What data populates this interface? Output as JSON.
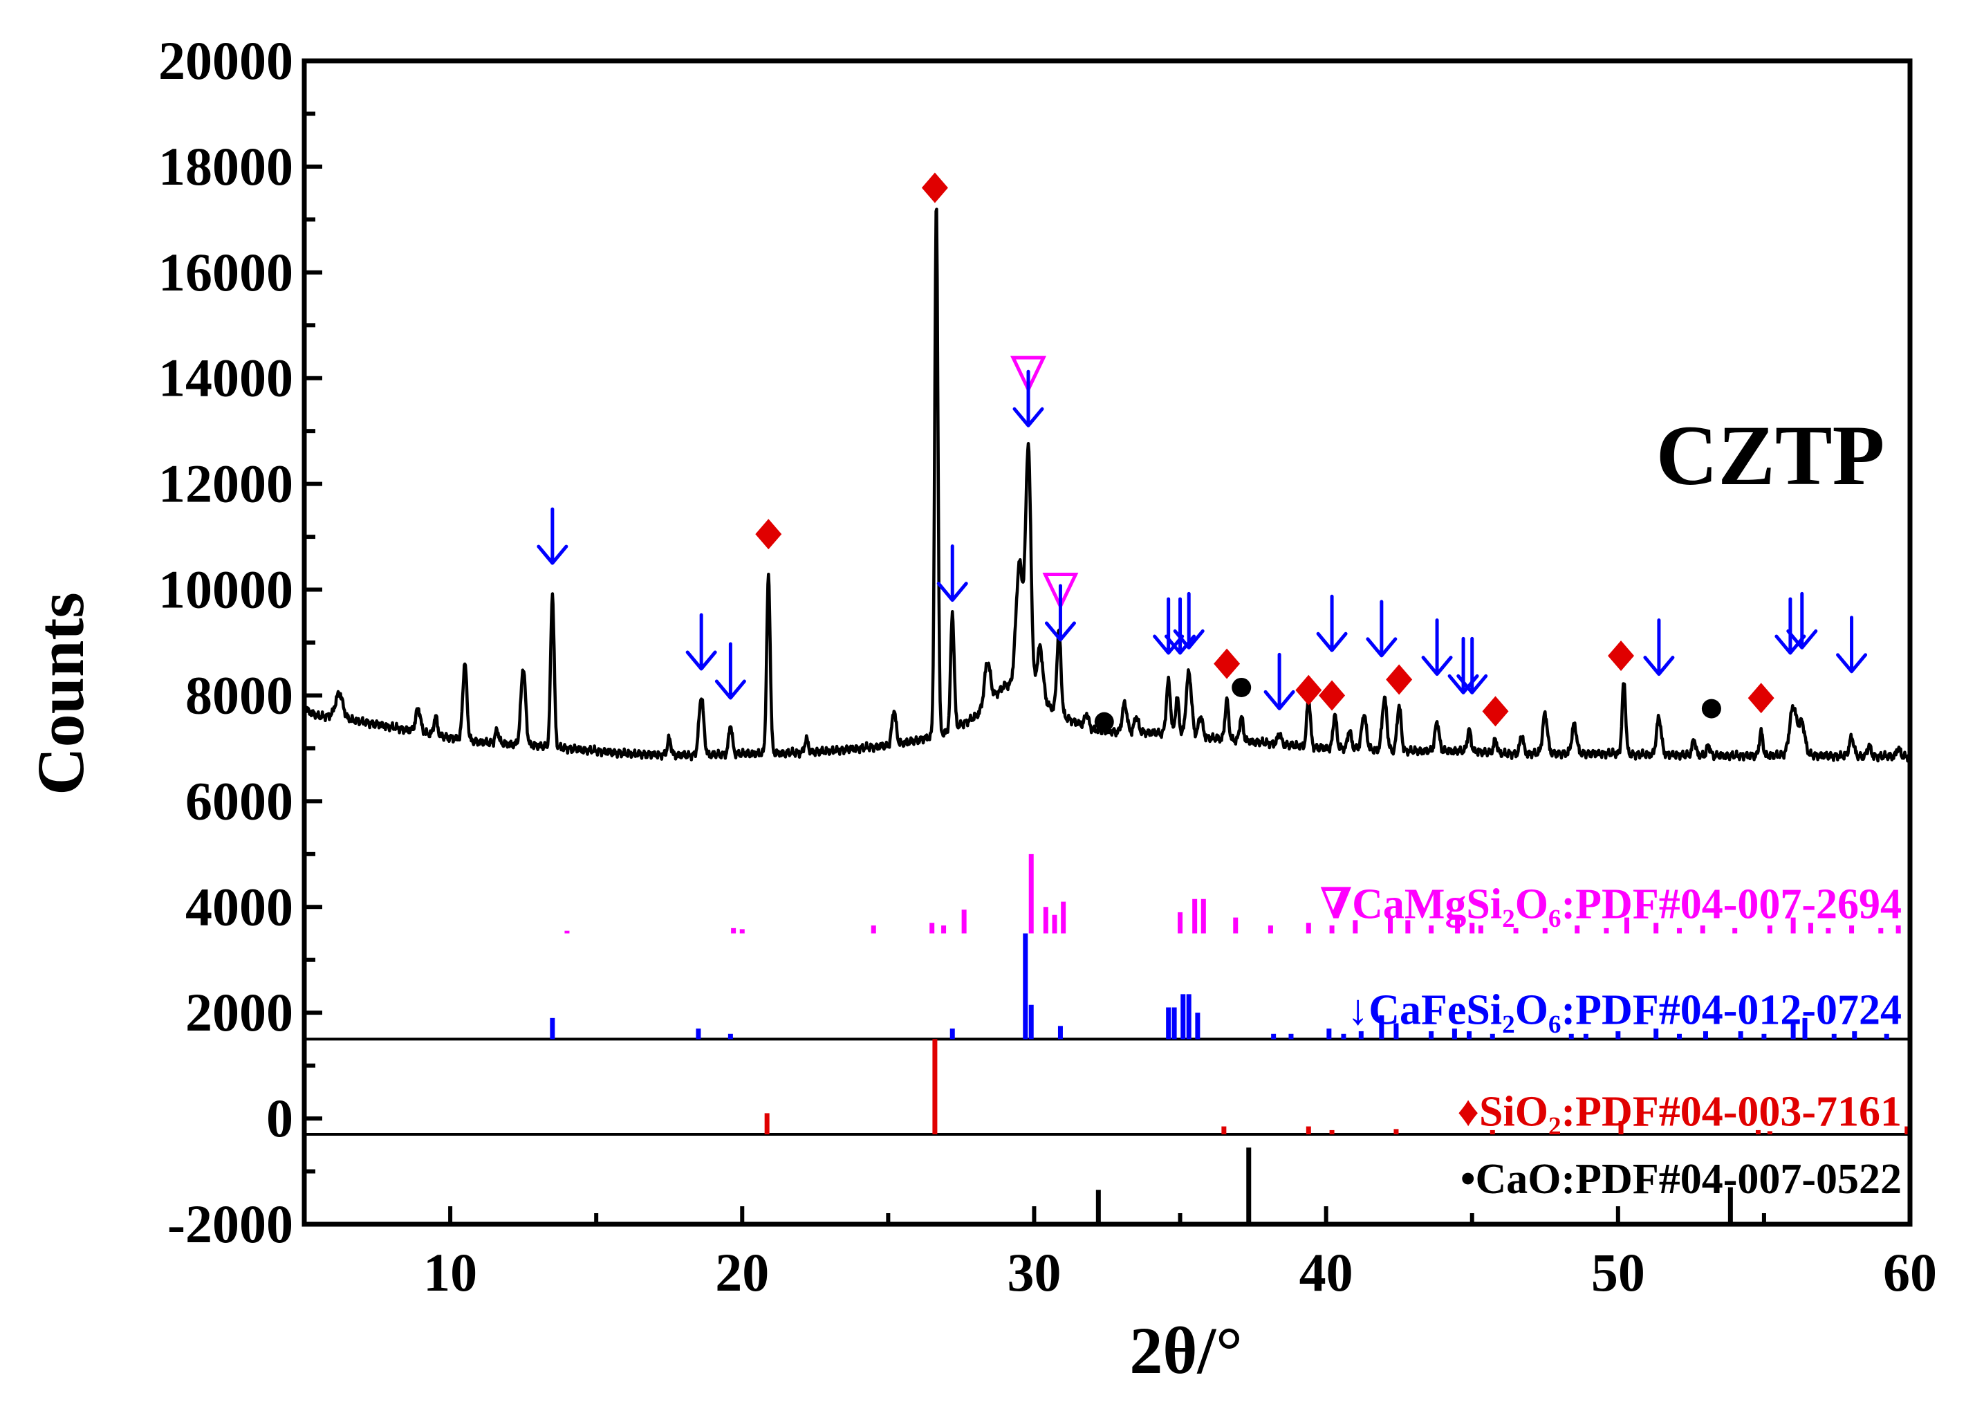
{
  "chart_data": {
    "type": "line",
    "title": "",
    "sample_label": "CZTP",
    "xlabel": "2θ/°",
    "ylabel": "Counts",
    "xlim": [
      5,
      60
    ],
    "ylim": [
      -2000,
      20000
    ],
    "x_ticks": [
      10,
      20,
      30,
      40,
      50,
      60
    ],
    "y_ticks": [
      -2000,
      0,
      2000,
      4000,
      6000,
      8000,
      10000,
      12000,
      14000,
      16000,
      18000,
      20000
    ],
    "x_tick_labels": [
      "10",
      "20",
      "30",
      "40",
      "50",
      "60"
    ],
    "y_tick_labels": [
      "-2000",
      "0",
      "2000",
      "4000",
      "6000",
      "8000",
      "10000",
      "12000",
      "14000",
      "16000",
      "18000",
      "20000"
    ],
    "grid": false,
    "pattern": {
      "name": "CZTP",
      "color": "#000000",
      "baseline": [
        [
          5,
          7750
        ],
        [
          5.5,
          7600
        ],
        [
          6,
          7620
        ],
        [
          6.5,
          7550
        ],
        [
          7,
          7500
        ],
        [
          8,
          7400
        ],
        [
          9,
          7300
        ],
        [
          10,
          7200
        ],
        [
          11,
          7120
        ],
        [
          12,
          7080
        ],
        [
          13,
          7050
        ],
        [
          14,
          7000
        ],
        [
          15,
          6950
        ],
        [
          16,
          6900
        ],
        [
          17,
          6880
        ],
        [
          18,
          6870
        ],
        [
          19,
          6880
        ],
        [
          20,
          6900
        ],
        [
          21,
          6900
        ],
        [
          22,
          6920
        ],
        [
          23,
          6950
        ],
        [
          24,
          7000
        ],
        [
          25,
          7050
        ],
        [
          26,
          7150
        ],
        [
          27,
          7300
        ],
        [
          28,
          7600
        ],
        [
          28.5,
          7900
        ],
        [
          29,
          8200
        ],
        [
          30,
          8000
        ],
        [
          31,
          7600
        ],
        [
          32,
          7350
        ],
        [
          33,
          7300
        ],
        [
          34,
          7300
        ],
        [
          35,
          7250
        ],
        [
          36,
          7200
        ],
        [
          37,
          7150
        ],
        [
          38,
          7100
        ],
        [
          39,
          7050
        ],
        [
          40,
          7000
        ],
        [
          41,
          7000
        ],
        [
          42,
          6950
        ],
        [
          43,
          6950
        ],
        [
          44,
          6950
        ],
        [
          45,
          6950
        ],
        [
          46,
          6900
        ],
        [
          47,
          6900
        ],
        [
          48,
          6900
        ],
        [
          49,
          6900
        ],
        [
          50,
          6900
        ],
        [
          51,
          6880
        ],
        [
          52,
          6880
        ],
        [
          53,
          6860
        ],
        [
          54,
          6860
        ],
        [
          55,
          6860
        ],
        [
          56,
          6880
        ],
        [
          57,
          6860
        ],
        [
          58,
          6850
        ],
        [
          59,
          6850
        ],
        [
          60,
          6850
        ]
      ],
      "peaks": [
        [
          6.2,
          450,
          0.12
        ],
        [
          8.9,
          450,
          0.08
        ],
        [
          9.5,
          350,
          0.06
        ],
        [
          10.5,
          1450,
          0.07
        ],
        [
          11.6,
          250,
          0.06
        ],
        [
          12.5,
          1450,
          0.08
        ],
        [
          13.5,
          2900,
          0.06
        ],
        [
          17.5,
          300,
          0.06
        ],
        [
          18.6,
          1100,
          0.08
        ],
        [
          19.6,
          550,
          0.06
        ],
        [
          20.9,
          3350,
          0.06
        ],
        [
          22.2,
          250,
          0.06
        ],
        [
          25.2,
          650,
          0.07
        ],
        [
          26.65,
          10050,
          0.055
        ],
        [
          27.2,
          2200,
          0.06
        ],
        [
          28.4,
          800,
          0.1
        ],
        [
          29.5,
          2400,
          0.12
        ],
        [
          29.8,
          4600,
          0.09
        ],
        [
          30.2,
          1000,
          0.1
        ],
        [
          30.85,
          1550,
          0.07
        ],
        [
          31.8,
          250,
          0.07
        ],
        [
          33.1,
          550,
          0.08
        ],
        [
          33.5,
          300,
          0.07
        ],
        [
          34.6,
          1000,
          0.07
        ],
        [
          34.9,
          700,
          0.06
        ],
        [
          35.3,
          1200,
          0.09
        ],
        [
          35.7,
          400,
          0.07
        ],
        [
          36.6,
          750,
          0.06
        ],
        [
          37.1,
          450,
          0.06
        ],
        [
          38.4,
          200,
          0.06
        ],
        [
          39.4,
          950,
          0.06
        ],
        [
          40.3,
          650,
          0.06
        ],
        [
          40.8,
          350,
          0.06
        ],
        [
          41.3,
          650,
          0.08
        ],
        [
          42.0,
          1000,
          0.08
        ],
        [
          42.5,
          850,
          0.07
        ],
        [
          43.8,
          550,
          0.07
        ],
        [
          44.9,
          400,
          0.06
        ],
        [
          45.8,
          250,
          0.06
        ],
        [
          46.7,
          350,
          0.06
        ],
        [
          47.5,
          750,
          0.08
        ],
        [
          48.5,
          550,
          0.08
        ],
        [
          50.2,
          1350,
          0.06
        ],
        [
          51.4,
          700,
          0.08
        ],
        [
          52.6,
          300,
          0.06
        ],
        [
          53.1,
          200,
          0.06
        ],
        [
          54.9,
          450,
          0.06
        ],
        [
          56.0,
          900,
          0.12
        ],
        [
          56.3,
          600,
          0.1
        ],
        [
          58.0,
          350,
          0.08
        ],
        [
          58.6,
          200,
          0.06
        ],
        [
          59.6,
          150,
          0.06
        ]
      ]
    },
    "reference_patterns": [
      {
        "name": "CaMgSi2O6",
        "legend": "∇CaMgSi₂O₆:PDF#04-007-2694",
        "color": "#ff00ff",
        "baseline": 3500,
        "lines": [
          [
            14.0,
            50
          ],
          [
            19.7,
            100
          ],
          [
            20.0,
            80
          ],
          [
            24.5,
            150
          ],
          [
            26.5,
            200
          ],
          [
            26.9,
            150
          ],
          [
            27.6,
            450
          ],
          [
            29.9,
            1500
          ],
          [
            30.4,
            500
          ],
          [
            30.7,
            350
          ],
          [
            31.0,
            600
          ],
          [
            35.0,
            400
          ],
          [
            35.5,
            650
          ],
          [
            35.8,
            650
          ],
          [
            36.9,
            300
          ],
          [
            38.1,
            150
          ],
          [
            39.4,
            200
          ],
          [
            40.2,
            150
          ],
          [
            41.0,
            250
          ],
          [
            42.2,
            300
          ],
          [
            42.8,
            250
          ],
          [
            43.6,
            150
          ],
          [
            44.5,
            350
          ],
          [
            45.0,
            200
          ],
          [
            45.3,
            150
          ],
          [
            46.5,
            100
          ],
          [
            47.5,
            100
          ],
          [
            48.6,
            150
          ],
          [
            49.6,
            100
          ],
          [
            50.3,
            300
          ],
          [
            51.3,
            200
          ],
          [
            52.1,
            100
          ],
          [
            52.9,
            150
          ],
          [
            54.0,
            100
          ],
          [
            55.2,
            150
          ],
          [
            56.0,
            300
          ],
          [
            56.6,
            200
          ],
          [
            57.2,
            100
          ],
          [
            58.0,
            150
          ],
          [
            59.0,
            100
          ],
          [
            59.6,
            150
          ]
        ]
      },
      {
        "name": "CaFeSi2O6",
        "legend": "↓CaFeSi₂O₆:PDF#04-012-0724",
        "color": "#0000ff",
        "baseline": 1500,
        "lines": [
          [
            13.5,
            400
          ],
          [
            18.5,
            200
          ],
          [
            19.6,
            100
          ],
          [
            27.2,
            200
          ],
          [
            29.7,
            2000
          ],
          [
            29.9,
            650
          ],
          [
            30.9,
            250
          ],
          [
            34.6,
            600
          ],
          [
            34.8,
            600
          ],
          [
            35.1,
            850
          ],
          [
            35.3,
            850
          ],
          [
            35.6,
            500
          ],
          [
            38.2,
            100
          ],
          [
            38.8,
            100
          ],
          [
            40.1,
            200
          ],
          [
            40.6,
            100
          ],
          [
            41.2,
            150
          ],
          [
            41.9,
            450
          ],
          [
            42.4,
            300
          ],
          [
            43.6,
            150
          ],
          [
            44.4,
            200
          ],
          [
            44.9,
            150
          ],
          [
            45.7,
            100
          ],
          [
            48.4,
            100
          ],
          [
            48.9,
            100
          ],
          [
            50.0,
            150
          ],
          [
            51.3,
            200
          ],
          [
            52.1,
            100
          ],
          [
            53.0,
            150
          ],
          [
            54.2,
            150
          ],
          [
            55.0,
            100
          ],
          [
            56.0,
            350
          ],
          [
            56.4,
            400
          ],
          [
            57.4,
            100
          ],
          [
            58.1,
            150
          ],
          [
            59.2,
            100
          ]
        ]
      },
      {
        "name": "SiO2",
        "legend": "♦SiO₂:PDF#04-003-7161",
        "color": "#e00000",
        "baseline": -300,
        "lines": [
          [
            20.85,
            400
          ],
          [
            26.6,
            1800
          ],
          [
            36.5,
            150
          ],
          [
            39.4,
            150
          ],
          [
            40.2,
            80
          ],
          [
            42.4,
            100
          ],
          [
            45.7,
            80
          ],
          [
            50.1,
            250
          ],
          [
            54.8,
            80
          ],
          [
            55.2,
            60
          ],
          [
            59.9,
            150
          ]
        ]
      },
      {
        "name": "CaO",
        "legend": "•CaO:PDF#04-007-0522",
        "color": "#000000",
        "baseline": -2000,
        "lines": [
          [
            32.2,
            650
          ],
          [
            37.35,
            1450
          ],
          [
            53.85,
            700
          ]
        ]
      }
    ],
    "annotations": [
      {
        "type": "arrow",
        "x": 13.5,
        "y": 11000,
        "color": "#0000ff"
      },
      {
        "type": "arrow",
        "x": 18.6,
        "y": 9000,
        "color": "#0000ff"
      },
      {
        "type": "arrow",
        "x": 19.6,
        "y": 8450,
        "color": "#0000ff"
      },
      {
        "type": "diamond",
        "x": 20.9,
        "y": 11050,
        "color": "#e00000"
      },
      {
        "type": "diamond",
        "x": 26.6,
        "y": 17600,
        "color": "#e00000"
      },
      {
        "type": "arrow",
        "x": 27.2,
        "y": 10300,
        "color": "#0000ff"
      },
      {
        "type": "triangle",
        "x": 29.8,
        "y": 14100,
        "color": "#ff00ff"
      },
      {
        "type": "arrow",
        "x": 29.8,
        "y": 13600,
        "color": "#0000ff"
      },
      {
        "type": "triangle",
        "x": 30.9,
        "y": 10000,
        "color": "#ff00ff"
      },
      {
        "type": "arrow",
        "x": 30.9,
        "y": 9550,
        "color": "#0000ff"
      },
      {
        "type": "dot",
        "x": 32.4,
        "y": 7500,
        "color": "#000000"
      },
      {
        "type": "arrow",
        "x": 34.6,
        "y": 9300,
        "color": "#0000ff"
      },
      {
        "type": "arrow",
        "x": 35.0,
        "y": 9300,
        "color": "#0000ff"
      },
      {
        "type": "arrow",
        "x": 35.3,
        "y": 9400,
        "color": "#0000ff"
      },
      {
        "type": "diamond",
        "x": 36.6,
        "y": 8600,
        "color": "#e00000"
      },
      {
        "type": "dot",
        "x": 37.1,
        "y": 8150,
        "color": "#000000"
      },
      {
        "type": "arrow",
        "x": 38.4,
        "y": 8250,
        "color": "#0000ff"
      },
      {
        "type": "diamond",
        "x": 39.4,
        "y": 8100,
        "color": "#e00000"
      },
      {
        "type": "diamond",
        "x": 40.2,
        "y": 8000,
        "color": "#e00000"
      },
      {
        "type": "arrow",
        "x": 40.2,
        "y": 9350,
        "color": "#0000ff"
      },
      {
        "type": "arrow",
        "x": 41.9,
        "y": 9250,
        "color": "#0000ff"
      },
      {
        "type": "diamond",
        "x": 42.5,
        "y": 8300,
        "color": "#e00000"
      },
      {
        "type": "arrow",
        "x": 43.8,
        "y": 8900,
        "color": "#0000ff"
      },
      {
        "type": "arrow",
        "x": 44.7,
        "y": 8550,
        "color": "#0000ff"
      },
      {
        "type": "arrow",
        "x": 45.0,
        "y": 8550,
        "color": "#0000ff"
      },
      {
        "type": "diamond",
        "x": 45.8,
        "y": 7700,
        "color": "#e00000"
      },
      {
        "type": "diamond",
        "x": 50.1,
        "y": 8750,
        "color": "#e00000"
      },
      {
        "type": "arrow",
        "x": 51.4,
        "y": 8900,
        "color": "#0000ff"
      },
      {
        "type": "dot",
        "x": 53.2,
        "y": 7750,
        "color": "#000000"
      },
      {
        "type": "diamond",
        "x": 54.9,
        "y": 7950,
        "color": "#e00000"
      },
      {
        "type": "arrow",
        "x": 55.9,
        "y": 9300,
        "color": "#0000ff"
      },
      {
        "type": "arrow",
        "x": 56.3,
        "y": 9400,
        "color": "#0000ff"
      },
      {
        "type": "arrow",
        "x": 58.0,
        "y": 8950,
        "color": "#0000ff"
      }
    ]
  }
}
